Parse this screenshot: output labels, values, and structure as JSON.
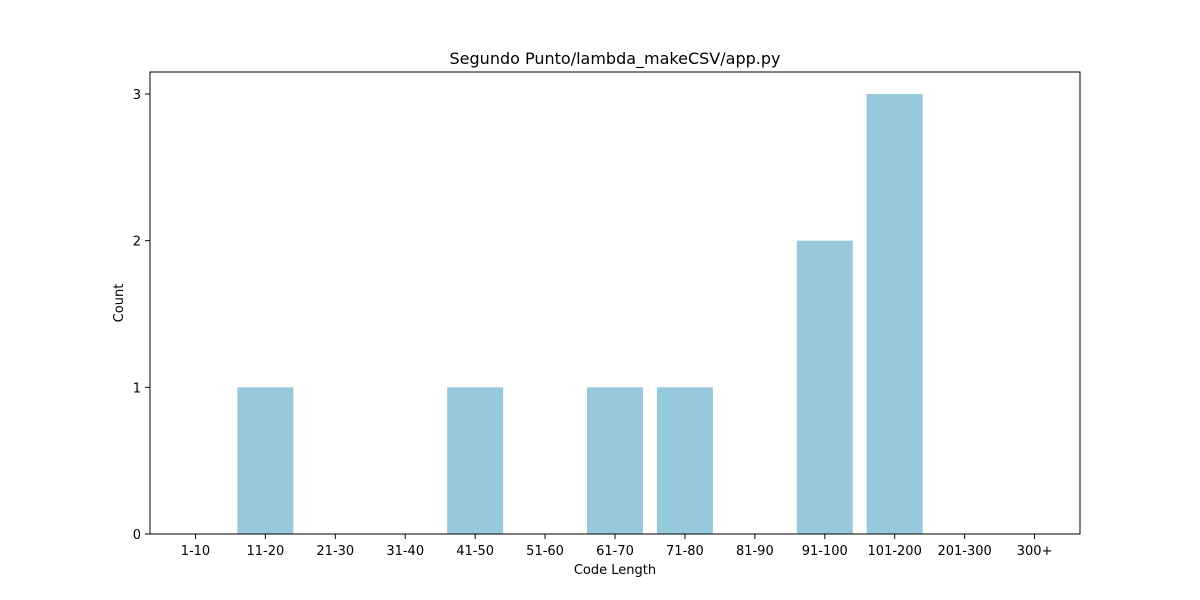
{
  "chart_data": {
    "type": "bar",
    "title": "Segundo Punto/lambda_makeCSV/app.py",
    "xlabel": "Code Length",
    "ylabel": "Count",
    "categories": [
      "1-10",
      "11-20",
      "21-30",
      "31-40",
      "41-50",
      "51-60",
      "61-70",
      "71-80",
      "81-90",
      "91-100",
      "101-200",
      "201-300",
      "300+"
    ],
    "values": [
      0,
      1,
      0,
      0,
      1,
      0,
      1,
      1,
      0,
      2,
      3,
      0,
      0
    ],
    "ylim": [
      0,
      3.15
    ],
    "yticks": [
      0,
      1,
      2,
      3
    ],
    "grid": false,
    "bar_color": "#96c9dc"
  }
}
